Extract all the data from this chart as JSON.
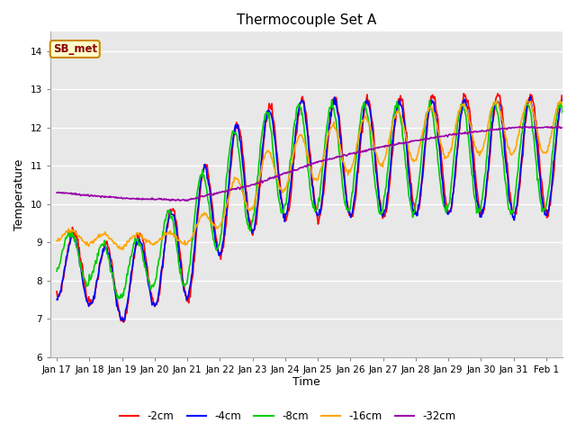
{
  "title": "Thermocouple Set A",
  "xlabel": "Time",
  "ylabel": "Temperature",
  "ylim": [
    6.0,
    14.5
  ],
  "yticks": [
    6.0,
    7.0,
    8.0,
    9.0,
    10.0,
    11.0,
    12.0,
    13.0,
    14.0
  ],
  "bg_color": "#e8e8e8",
  "fig_color": "#ffffff",
  "grid_color": "#ffffff",
  "annotation_text": "SB_met",
  "annotation_bg": "#ffffcc",
  "annotation_border": "#cc8800",
  "annotation_text_color": "#880000",
  "series_colors": {
    "-2cm": "#ff0000",
    "-4cm": "#0000ff",
    "-8cm": "#00cc00",
    "-16cm": "#ffa500",
    "-32cm": "#9900aa"
  },
  "series_linewidth": 1.2,
  "xtick_labels": [
    "Jan 17",
    "Jan 18",
    "Jan 19",
    "Jan 20",
    "Jan 21",
    "Jan 22",
    "Jan 23",
    "Jan 24",
    "Jan 25",
    "Jan 26",
    "Jan 27",
    "Jan 28",
    "Jan 29",
    "Jan 30",
    "Jan 31",
    "Feb 1"
  ]
}
